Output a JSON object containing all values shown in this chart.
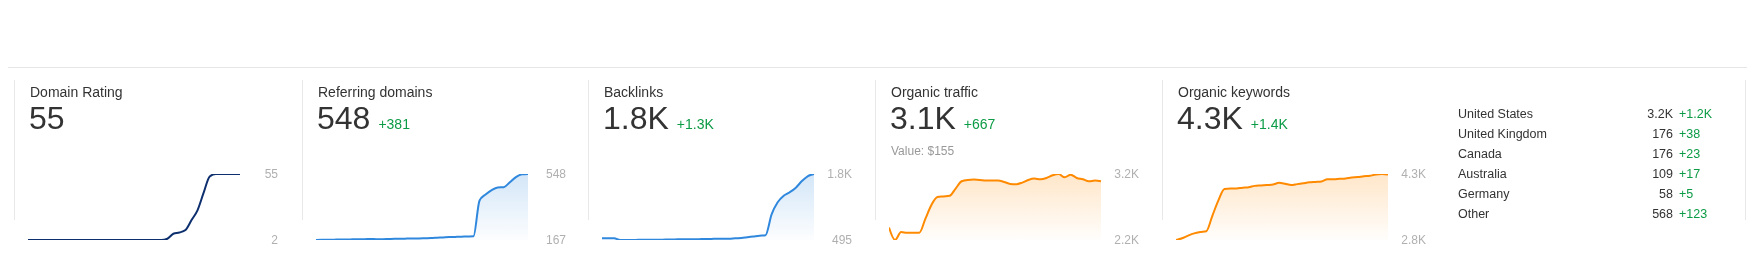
{
  "chart_data": [
    {
      "type": "line",
      "title": "Domain Rating",
      "subtitle": "55",
      "categories": [
        null,
        null,
        null,
        null,
        null,
        null,
        null,
        null,
        null,
        null,
        null,
        null,
        null,
        null,
        null,
        null,
        null,
        null,
        null,
        null,
        null,
        null,
        null,
        null,
        null,
        null,
        null,
        null,
        null,
        null,
        null,
        null,
        null,
        null,
        null,
        null
      ],
      "series": [
        {
          "color": "#0d2f6e",
          "values": [
            2,
            2,
            2,
            2,
            2,
            2,
            2,
            2,
            2,
            2,
            2,
            2,
            2,
            2,
            2,
            2,
            2,
            2,
            2,
            2,
            2,
            2,
            2,
            3,
            7,
            8,
            10,
            18,
            26,
            40,
            53,
            55,
            55,
            55,
            55,
            55
          ]
        }
      ],
      "ylim": [
        2,
        55
      ],
      "yticks": [
        2,
        55
      ],
      "tick_labels": "y"
    },
    {
      "type": "area",
      "title": "Referring domains",
      "subtitle": "548",
      "annotations": [
        "+381"
      ],
      "categories": [
        null,
        null,
        null,
        null,
        null,
        null,
        null,
        null,
        null,
        null,
        null,
        null,
        null,
        null,
        null,
        null,
        null,
        null,
        null,
        null,
        null,
        null,
        null,
        null,
        null,
        null,
        null,
        null,
        null,
        null,
        null,
        null,
        null,
        null,
        null,
        null
      ],
      "series": [
        {
          "color": "#2f88dd",
          "values": [
            167,
            168,
            168,
            169,
            170,
            170,
            171,
            172,
            172,
            173,
            172,
            172,
            173,
            174,
            174,
            175,
            176,
            176,
            177,
            178,
            180,
            182,
            184,
            185,
            186,
            187,
            188,
            395,
            430,
            455,
            470,
            472,
            500,
            530,
            546,
            548
          ]
        }
      ],
      "ylim": [
        167,
        548
      ],
      "yticks": [
        167,
        548
      ],
      "tick_labels": "y"
    },
    {
      "type": "area",
      "title": "Backlinks",
      "subtitle": "1.8K",
      "annotations": [
        "+1.3K"
      ],
      "categories": [
        null,
        null,
        null,
        null,
        null,
        null,
        null,
        null,
        null,
        null,
        null,
        null,
        null,
        null,
        null,
        null,
        null,
        null,
        null,
        null,
        null,
        null,
        null,
        null,
        null,
        null,
        null,
        null,
        null,
        null,
        null,
        null,
        null,
        null,
        null,
        null
      ],
      "series": [
        {
          "color": "#2f88dd",
          "values": [
            530,
            530,
            530,
            495,
            495,
            495,
            500,
            500,
            500,
            500,
            500,
            505,
            505,
            510,
            510,
            510,
            510,
            515,
            515,
            520,
            520,
            520,
            530,
            535,
            550,
            565,
            580,
            590,
            1000,
            1240,
            1370,
            1440,
            1530,
            1660,
            1760,
            1800
          ]
        }
      ],
      "ylim": [
        495,
        1800
      ],
      "yticks": [
        {
          "value": 495,
          "label": "495"
        },
        {
          "value": 1800,
          "label": "1.8K"
        }
      ],
      "tick_labels": "y"
    },
    {
      "type": "area",
      "title": "Organic traffic",
      "subtitle": "3.1K",
      "annotations": [
        "+667",
        "Value: $155"
      ],
      "categories": [
        null,
        null,
        null,
        null,
        null,
        null,
        null,
        null,
        null,
        null,
        null,
        null,
        null,
        null,
        null,
        null,
        null,
        null,
        null,
        null,
        null,
        null,
        null,
        null,
        null,
        null,
        null,
        null,
        null,
        null,
        null,
        null,
        null,
        null,
        null,
        null
      ],
      "series": [
        {
          "color": "#ff8a00",
          "values": [
            2390,
            2200,
            2320,
            2310,
            2310,
            2310,
            2520,
            2730,
            2850,
            2860,
            2870,
            2980,
            3090,
            3110,
            3115,
            3110,
            3100,
            3100,
            3100,
            3080,
            3050,
            3045,
            3070,
            3110,
            3130,
            3120,
            3140,
            3180,
            3200,
            3150,
            3190,
            3140,
            3120,
            3090,
            3100,
            3090
          ]
        }
      ],
      "ylim": [
        2200,
        3200
      ],
      "yticks": [
        {
          "value": 2200,
          "label": "2.2K"
        },
        {
          "value": 3200,
          "label": "3.2K"
        }
      ],
      "tick_labels": "y"
    },
    {
      "type": "area",
      "title": "Organic keywords",
      "subtitle": "4.3K",
      "annotations": [
        "+1.4K"
      ],
      "categories": [
        null,
        null,
        null,
        null,
        null,
        null,
        null,
        null,
        null,
        null,
        null,
        null,
        null,
        null,
        null,
        null,
        null,
        null,
        null,
        null,
        null,
        null,
        null,
        null,
        null,
        null,
        null,
        null,
        null,
        null,
        null,
        null,
        null,
        null,
        null,
        null
      ],
      "series": [
        {
          "color": "#ff8a00",
          "values": [
            2800,
            2840,
            2900,
            2950,
            2980,
            3000,
            3350,
            3700,
            3960,
            3970,
            3970,
            3990,
            4000,
            4030,
            4040,
            4050,
            4060,
            4100,
            4080,
            4050,
            4070,
            4090,
            4110,
            4120,
            4130,
            4180,
            4180,
            4190,
            4200,
            4220,
            4230,
            4250,
            4260,
            4290,
            4300,
            4290
          ]
        }
      ],
      "ylim": [
        2800,
        4300
      ],
      "yticks": [
        {
          "value": 2800,
          "label": "2.8K"
        },
        {
          "value": 4300,
          "label": "4.3K"
        }
      ],
      "tick_labels": "y"
    },
    {
      "type": "other",
      "categories": [
        "United States",
        "United Kingdom",
        "Canada",
        "Australia",
        "Germany",
        "Other"
      ],
      "series": [
        {
          "color": "#333333",
          "values": [
            3200,
            176,
            176,
            109,
            58,
            568
          ],
          "value_labels": [
            "3.2K",
            "176",
            "176",
            "109",
            "58",
            "568"
          ]
        },
        {
          "color": "#0c9b46",
          "values": [
            1200,
            38,
            23,
            17,
            5,
            123
          ],
          "value_labels": [
            "+1.2K",
            "+38",
            "+23",
            "+17",
            "+5",
            "+123"
          ]
        }
      ]
    }
  ]
}
